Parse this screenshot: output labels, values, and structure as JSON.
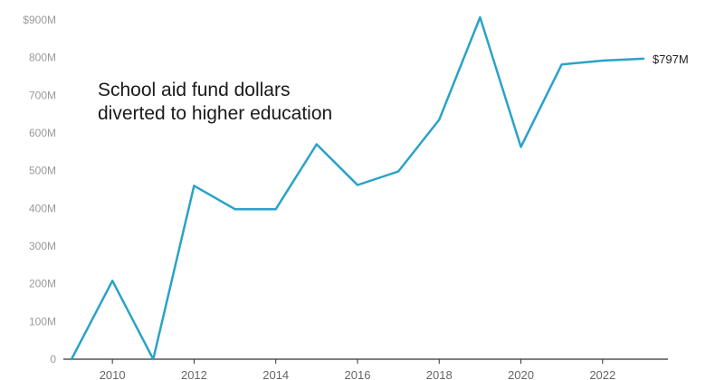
{
  "chart_data": {
    "type": "line",
    "annotation": "School aid fund dollars diverted to higher education",
    "x": [
      2009,
      2010,
      2011,
      2012,
      2013,
      2014,
      2015,
      2016,
      2017,
      2018,
      2019,
      2020,
      2021,
      2022,
      2023
    ],
    "series": [
      {
        "values": [
          0,
          208,
          0,
          460,
          398,
          398,
          570,
          462,
          498,
          635,
          907,
          563,
          782,
          792,
          797
        ]
      }
    ],
    "y_ticks": [
      {
        "value": 0,
        "label": "0"
      },
      {
        "value": 100,
        "label": "100M"
      },
      {
        "value": 200,
        "label": "200M"
      },
      {
        "value": 300,
        "label": "300M"
      },
      {
        "value": 400,
        "label": "400M"
      },
      {
        "value": 500,
        "label": "500M"
      },
      {
        "value": 600,
        "label": "600M"
      },
      {
        "value": 700,
        "label": "700M"
      },
      {
        "value": 800,
        "label": "800M"
      },
      {
        "value": 900,
        "label": "$900M"
      }
    ],
    "x_ticks": [
      "2010",
      "2012",
      "2014",
      "2016",
      "2018",
      "2020",
      "2022"
    ],
    "end_label": "$797M",
    "ylim": [
      0,
      900
    ],
    "xlim": [
      2008.8,
      2023.6
    ],
    "grid": false,
    "line_color": "#2aa2c8",
    "axis_color": "#333333",
    "tick_color": "#9a9a9a"
  }
}
